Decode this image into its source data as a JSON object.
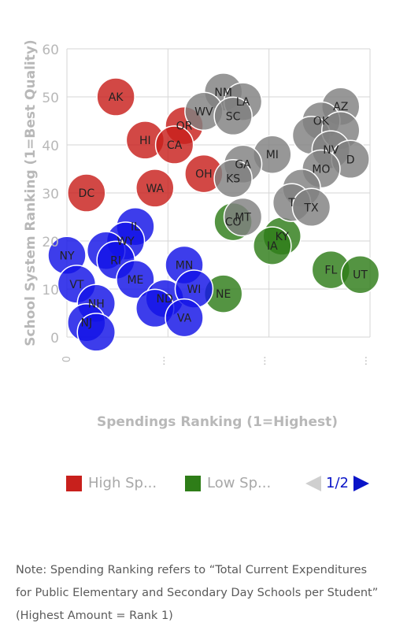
{
  "chart_data": {
    "type": "scatter",
    "title": "",
    "xlabel": "Spendings Ranking (1=Highest)",
    "ylabel": "School System Ranking (1=Best Quality)",
    "ylim": [
      0,
      60
    ],
    "yticks": [
      0,
      10,
      20,
      30,
      40,
      50,
      60
    ],
    "xticks": [
      "0",
      "",
      "",
      ""
    ],
    "grid": true,
    "series": [
      {
        "name": "High Sp...",
        "color": "#c8201c",
        "points": [
          {
            "label": "AK",
            "x": 5,
            "y": 50
          },
          {
            "label": "DC",
            "x": 2,
            "y": 30
          },
          {
            "label": "HI",
            "x": 8,
            "y": 41
          },
          {
            "label": "OR",
            "x": 12,
            "y": 44
          },
          {
            "label": "CA",
            "x": 11,
            "y": 40
          },
          {
            "label": "WA",
            "x": 9,
            "y": 31
          },
          {
            "label": "OH",
            "x": 14,
            "y": 34
          }
        ]
      },
      {
        "name": "Low Sp...",
        "color": "#2e7d18",
        "points": [
          {
            "label": "CO",
            "x": 17,
            "y": 24
          },
          {
            "label": "KY",
            "x": 22,
            "y": 21
          },
          {
            "label": "IA",
            "x": 21,
            "y": 19
          },
          {
            "label": "FL",
            "x": 27,
            "y": 14
          },
          {
            "label": "UT",
            "x": 30,
            "y": 13
          },
          {
            "label": "NE",
            "x": 16,
            "y": 9
          }
        ]
      },
      {
        "name": "",
        "color": "#1212e6",
        "points": [
          {
            "label": "IL",
            "x": 7,
            "y": 23
          },
          {
            "label": "WY",
            "x": 6,
            "y": 20
          },
          {
            "label": "NY",
            "x": 0,
            "y": 17
          },
          {
            "label": "",
            "x": 4,
            "y": 18
          },
          {
            "label": "RI",
            "x": 5,
            "y": 16
          },
          {
            "label": "VT",
            "x": 1,
            "y": 11
          },
          {
            "label": "ME",
            "x": 7,
            "y": 12
          },
          {
            "label": "NH",
            "x": 3,
            "y": 7
          },
          {
            "label": "MN",
            "x": 12,
            "y": 15
          },
          {
            "label": "ND",
            "x": 10,
            "y": 8
          },
          {
            "label": "WI",
            "x": 13,
            "y": 10
          },
          {
            "label": "",
            "x": 9,
            "y": 6
          },
          {
            "label": "VA",
            "x": 12,
            "y": 4
          },
          {
            "label": "NJ",
            "x": 2,
            "y": 3
          },
          {
            "label": "",
            "x": 3,
            "y": 1
          }
        ]
      },
      {
        "name": "",
        "color": "#808080",
        "points": [
          {
            "label": "NM",
            "x": 16,
            "y": 51
          },
          {
            "label": "LA",
            "x": 18,
            "y": 49
          },
          {
            "label": "WV",
            "x": 14,
            "y": 47
          },
          {
            "label": "SC",
            "x": 17,
            "y": 46
          },
          {
            "label": "AZ",
            "x": 28,
            "y": 48
          },
          {
            "label": "OK",
            "x": 26,
            "y": 45
          },
          {
            "label": "",
            "x": 25,
            "y": 42
          },
          {
            "label": "",
            "x": 28,
            "y": 43
          },
          {
            "label": "NV",
            "x": 27,
            "y": 39
          },
          {
            "label": "D",
            "x": 29,
            "y": 37
          },
          {
            "label": "MO",
            "x": 26,
            "y": 35
          },
          {
            "label": "MI",
            "x": 21,
            "y": 38
          },
          {
            "label": "GA",
            "x": 18,
            "y": 36
          },
          {
            "label": "KS",
            "x": 17,
            "y": 33
          },
          {
            "label": "",
            "x": 24,
            "y": 31
          },
          {
            "label": "T",
            "x": 23,
            "y": 28
          },
          {
            "label": "TX",
            "x": 25,
            "y": 27
          },
          {
            "label": "MT",
            "x": 18,
            "y": 25
          }
        ]
      }
    ]
  },
  "legend": {
    "items": [
      {
        "label": "High Sp...",
        "color": "#c8201c"
      },
      {
        "label": "Low Sp...",
        "color": "#2e7d18"
      }
    ],
    "pager": "1/2"
  },
  "note": "Note: Spending Ranking refers to “Total Current Expenditures for Public Elementary and Secondary Day Schools per Student” (Highest Amount = Rank 1)"
}
